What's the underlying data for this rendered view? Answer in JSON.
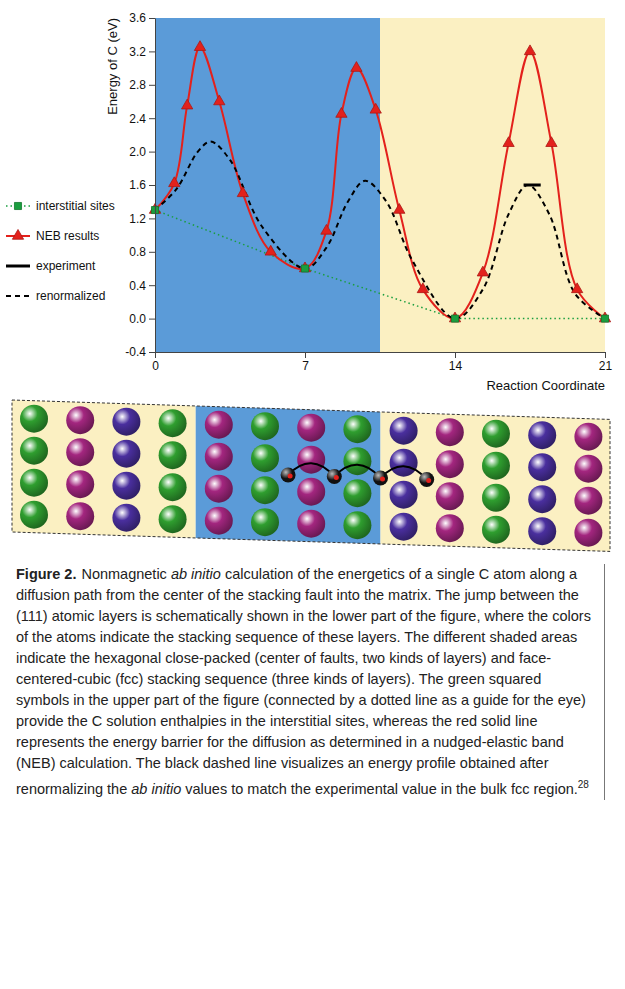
{
  "chart_data": {
    "type": "line",
    "y_label": "Energy of C (eV)",
    "x_label": "Reaction Coordinate",
    "xlim": [
      0,
      21
    ],
    "xticks": [
      0,
      7,
      14,
      21
    ],
    "ylim": [
      -0.4,
      3.6
    ],
    "yticks": [
      -0.4,
      {
        "value": 0,
        "label": "0.0"
      },
      0.4,
      0.8,
      1.2,
      1.6,
      {
        "value": 2,
        "label": "2.0"
      },
      2.4,
      2.8,
      3.2,
      3.6
    ],
    "legend": "left",
    "regions": [
      {
        "x": [
          0,
          10.5
        ],
        "color": "#5b9bd8"
      },
      {
        "x": [
          10.5,
          21
        ],
        "color": "#fbf0c2"
      }
    ],
    "series": [
      {
        "name": "interstitial sites",
        "color": "#1a9e3f",
        "marker": "square",
        "line_style": "dotted",
        "x": [
          0,
          7,
          14,
          21
        ],
        "values": [
          1.3,
          0.6,
          0,
          0
        ]
      },
      {
        "name": "NEB results",
        "color": "#e3211c",
        "marker": "triangle",
        "line_style": "solid",
        "x": [
          0,
          0.9,
          1.5,
          2.1,
          3.0,
          4.1,
          5.4,
          7,
          8.0,
          8.7,
          9.4,
          10.3,
          11.4,
          12.5,
          14,
          15.3,
          16.5,
          17.5,
          18.5,
          19.7,
          21
        ],
        "values": [
          1.3,
          1.62,
          2.55,
          3.25,
          2.6,
          1.5,
          0.8,
          0.6,
          1.05,
          2.45,
          3.0,
          2.5,
          1.3,
          0.35,
          0,
          0.55,
          2.1,
          3.2,
          2.1,
          0.35,
          0
        ]
      },
      {
        "name": "experiment",
        "color": "#000000",
        "marker": "none",
        "line_style": "solid",
        "x": [
          17.2,
          18.0
        ],
        "values": [
          1.6,
          1.6
        ]
      },
      {
        "name": "renormalized",
        "color": "#000000",
        "marker": "none",
        "line_style": "dashed",
        "x": [
          0,
          1,
          2,
          2.6,
          3.5,
          5,
          7,
          8,
          9,
          9.8,
          10.8,
          12,
          14,
          15.3,
          16.5,
          17.4,
          18.4,
          19.6,
          21
        ],
        "values": [
          1.3,
          1.55,
          2.0,
          2.12,
          1.9,
          1.1,
          0.6,
          0.85,
          1.4,
          1.65,
          1.4,
          0.7,
          0,
          0.35,
          1.25,
          1.6,
          1.25,
          0.3,
          0
        ]
      }
    ]
  },
  "caption": {
    "label": "Figure 2.",
    "segments": [
      {
        "text": "Nonmagnetic "
      },
      {
        "text": "ab initio",
        "style": "italic"
      },
      {
        "text": " calculation of the energetics of a single C atom along a diffusion path from the center of the stacking fault into the matrix. The jump between the (111) atomic layers is schematically shown in the lower part of the figure, where the colors of the atoms indicate the stacking sequence of these layers. The different shaded areas indicate the hexagonal close-packed (center of faults, two kinds of layers) and face-centered-cubic (fcc) stacking sequence (three kinds of layers). The green squared symbols in the upper part of the figure (connected by a dotted line as a guide for the eye) provide the C solution enthalpies in the interstitial sites, whereas the red solid line represents the energy barrier for the diffusion as determined in a nudged-elastic band (NEB) calculation. The black dashed line visualizes an energy profile obtained after renormalizing the "
      },
      {
        "text": "ab initio",
        "style": "italic"
      },
      {
        "text": " values to match the experimental value in the bulk fcc region."
      }
    ],
    "ref": "28"
  }
}
